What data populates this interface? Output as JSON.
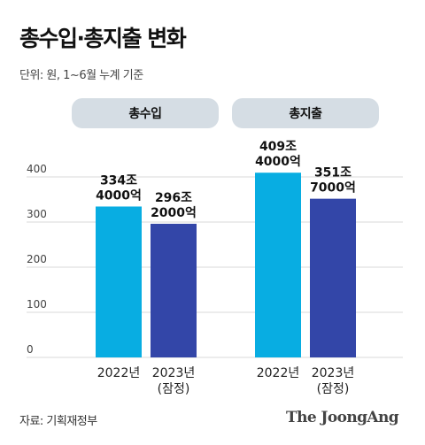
{
  "header": {
    "title": "총수입·총지출 변화",
    "subtitle": "단위: 원, 1~6월 누계 기준"
  },
  "groups": [
    {
      "label": "총수입"
    },
    {
      "label": "총지출"
    }
  ],
  "footer": {
    "source": "자료: 기획재정부",
    "logo": "The JoongAng"
  },
  "colors": {
    "bar_2022": "#08ade2",
    "bar_2023": "#3346a8",
    "pill": "#d5dde4",
    "grid": "#d9d9d9"
  },
  "chart_data": {
    "type": "bar",
    "ylim": [
      0,
      400
    ],
    "yticks": [
      0,
      100,
      200,
      300,
      400
    ],
    "grid": true,
    "groups": [
      {
        "name": "총수입",
        "bars": [
          {
            "category": [
              "2022년"
            ],
            "value": 334.4,
            "label": [
              "334조",
              "4000억"
            ],
            "color": "#08ade2"
          },
          {
            "category": [
              "2023년",
              "(잠정)"
            ],
            "value": 296.2,
            "label": [
              "296조",
              "2000억"
            ],
            "color": "#3346a8"
          }
        ]
      },
      {
        "name": "총지출",
        "bars": [
          {
            "category": [
              "2022년"
            ],
            "value": 409.4,
            "label": [
              "409조",
              "4000억"
            ],
            "color": "#08ade2"
          },
          {
            "category": [
              "2023년",
              "(잠정)"
            ],
            "value": 351.7,
            "label": [
              "351조",
              "7000억"
            ],
            "color": "#3346a8"
          }
        ]
      }
    ]
  }
}
